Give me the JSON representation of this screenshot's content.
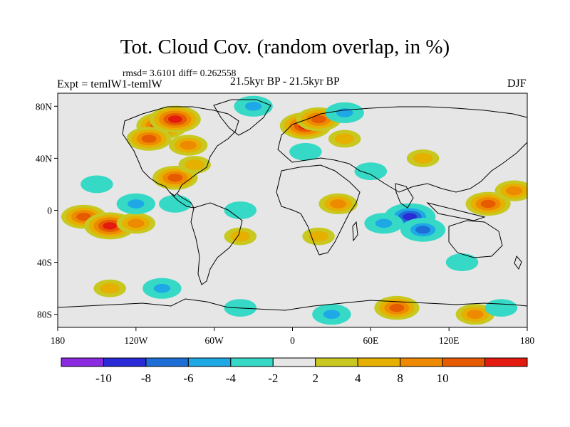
{
  "title": "Tot. Cloud Cov. (random overlap, in %)",
  "stats": "rmsd= 3.6101 diff= 0.262558",
  "experiment": "Expt = temlW1-temlW",
  "period": "21.5kyr BP - 21.5kyr BP",
  "season": "DJF",
  "axes": {
    "x_ticks": [
      {
        "lon": -180,
        "label": "180"
      },
      {
        "lon": -120,
        "label": "120W"
      },
      {
        "lon": -60,
        "label": "60W"
      },
      {
        "lon": 0,
        "label": "0"
      },
      {
        "lon": 60,
        "label": "60E"
      },
      {
        "lon": 120,
        "label": "120E"
      },
      {
        "lon": 180,
        "label": "180"
      }
    ],
    "y_ticks": [
      {
        "lat": 80,
        "label": "80N"
      },
      {
        "lat": 40,
        "label": "40N"
      },
      {
        "lat": 0,
        "label": "0"
      },
      {
        "lat": -40,
        "label": "40S"
      },
      {
        "lat": -80,
        "label": "80S"
      }
    ],
    "lon_range": [
      -180,
      180
    ],
    "lat_range": [
      -90,
      90
    ]
  },
  "colorbar": {
    "colors": [
      "#8a2be2",
      "#2a2ad6",
      "#1e6ed8",
      "#1ea8e6",
      "#36d9c6",
      "#e6e6e6",
      "#c8c820",
      "#e6b000",
      "#ee8a00",
      "#e65a00",
      "#e41a10"
    ],
    "labels": [
      "-10",
      "-8",
      "-6",
      "-4",
      "-2",
      "2",
      "4",
      "8",
      "10"
    ]
  },
  "anomalies": [
    {
      "lon": -160,
      "lat": -5,
      "value": 8
    },
    {
      "lon": -140,
      "lat": -12,
      "value": 10
    },
    {
      "lon": -120,
      "lat": -10,
      "value": 6
    },
    {
      "lon": -100,
      "lat": 65,
      "value": 10
    },
    {
      "lon": -110,
      "lat": 55,
      "value": 8
    },
    {
      "lon": -90,
      "lat": 70,
      "value": 10
    },
    {
      "lon": -80,
      "lat": 50,
      "value": 6
    },
    {
      "lon": -90,
      "lat": 25,
      "value": 8
    },
    {
      "lon": -75,
      "lat": 35,
      "value": 4
    },
    {
      "lon": 10,
      "lat": 65,
      "value": 10
    },
    {
      "lon": 20,
      "lat": 70,
      "value": 8
    },
    {
      "lon": 40,
      "lat": 55,
      "value": 4
    },
    {
      "lon": 150,
      "lat": 5,
      "value": 8
    },
    {
      "lon": 170,
      "lat": 15,
      "value": 6
    },
    {
      "lon": 100,
      "lat": 40,
      "value": 4
    },
    {
      "lon": 20,
      "lat": -20,
      "value": 4
    },
    {
      "lon": 35,
      "lat": 5,
      "value": 6
    },
    {
      "lon": 80,
      "lat": -75,
      "value": 8
    },
    {
      "lon": 140,
      "lat": -80,
      "value": 6
    },
    {
      "lon": -40,
      "lat": -20,
      "value": 4
    },
    {
      "lon": -140,
      "lat": -60,
      "value": 4
    },
    {
      "lon": 90,
      "lat": -5,
      "value": -10
    },
    {
      "lon": 100,
      "lat": -15,
      "value": -8
    },
    {
      "lon": 70,
      "lat": -10,
      "value": -6
    },
    {
      "lon": -120,
      "lat": 5,
      "value": -6
    },
    {
      "lon": -90,
      "lat": 5,
      "value": -4
    },
    {
      "lon": -150,
      "lat": 20,
      "value": -4
    },
    {
      "lon": -40,
      "lat": 0,
      "value": -4
    },
    {
      "lon": -30,
      "lat": 80,
      "value": -6
    },
    {
      "lon": 40,
      "lat": 75,
      "value": -6
    },
    {
      "lon": 10,
      "lat": 45,
      "value": -4
    },
    {
      "lon": 130,
      "lat": -40,
      "value": -4
    },
    {
      "lon": -100,
      "lat": -60,
      "value": -6
    },
    {
      "lon": 30,
      "lat": -80,
      "value": -6
    },
    {
      "lon": -40,
      "lat": -75,
      "value": -4
    },
    {
      "lon": 160,
      "lat": -75,
      "value": -4
    },
    {
      "lon": 60,
      "lat": 30,
      "value": -4
    }
  ]
}
